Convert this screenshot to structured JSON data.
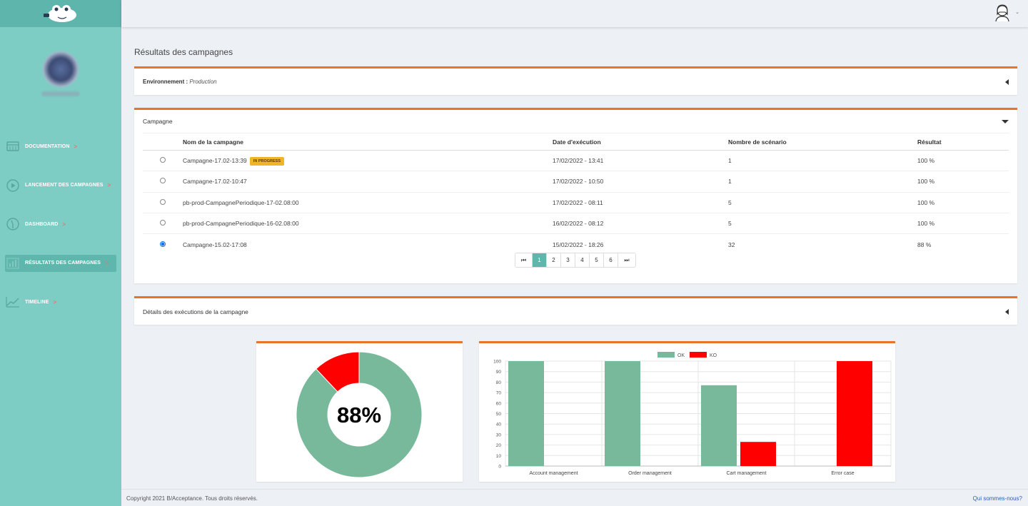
{
  "page": {
    "title": "Résultats des campagnes"
  },
  "sidebar": {
    "items": [
      {
        "label": "DOCUMENTATION",
        "arrow": ">"
      },
      {
        "label": "LANCEMENT DES CAMPAGNES",
        "arrow": ">"
      },
      {
        "label": "DASHBOARD",
        "arrow": ">"
      },
      {
        "label": "RÉSULTATS DES CAMPAGNES",
        "arrow": ">"
      },
      {
        "label": "TIMELINE",
        "arrow": ">"
      }
    ]
  },
  "environment": {
    "label": "Environnement :",
    "value": "Production"
  },
  "campaign": {
    "title": "Campagne",
    "columns": [
      "Nom de la campagne",
      "Date d'exécution",
      "Nombre de scénario",
      "Résultat"
    ],
    "rows": [
      {
        "name": "Campagne-17.02-13:39",
        "badge": "IN PROGRESS",
        "date": "17/02/2022 - 13:41",
        "count": "1",
        "result": "100 %",
        "selected": false
      },
      {
        "name": "Campagne-17.02-10:47",
        "badge": "",
        "date": "17/02/2022 - 10:50",
        "count": "1",
        "result": "100 %",
        "selected": false
      },
      {
        "name": "pb-prod-CampagnePeriodique-17-02.08:00",
        "badge": "",
        "date": "17/02/2022 - 08:11",
        "count": "5",
        "result": "100 %",
        "selected": false
      },
      {
        "name": "pb-prod-CampagnePeriodique-16-02.08:00",
        "badge": "",
        "date": "16/02/2022 - 08:12",
        "count": "5",
        "result": "100 %",
        "selected": false
      },
      {
        "name": "Campagne-15.02-17:08",
        "badge": "",
        "date": "15/02/2022 - 18:26",
        "count": "32",
        "result": "88 %",
        "selected": true
      }
    ],
    "pagination": {
      "first": "⏮",
      "pages": [
        "1",
        "2",
        "3",
        "4",
        "5",
        "6"
      ],
      "active": "1",
      "last": "⏭"
    }
  },
  "details": {
    "title": "Détails des exécutions de la campagne"
  },
  "footer": {
    "copyright": "Copyright 2021 B/Acceptance. Tous droits réservés.",
    "link": "Qui sommes-nous?"
  },
  "colors": {
    "ok": "#77b99a",
    "ko": "#ff0000",
    "accent": "#e8742a",
    "sidebar": "#7ecdc4"
  },
  "chart_data": [
    {
      "type": "pie",
      "variant": "doughnut",
      "center_label": "88%",
      "slices": [
        {
          "label": "OK",
          "value": 88
        },
        {
          "label": "KO",
          "value": 12
        }
      ]
    },
    {
      "type": "bar",
      "categories": [
        "Account management",
        "Order management",
        "Cart management",
        "Error case"
      ],
      "series": [
        {
          "name": "OK",
          "values": [
            100,
            100,
            77,
            0
          ]
        },
        {
          "name": "KO",
          "values": [
            0,
            0,
            23,
            100
          ]
        }
      ],
      "ylim": [
        0,
        100
      ],
      "yticks": [
        0,
        10,
        20,
        30,
        40,
        50,
        60,
        70,
        80,
        90,
        100
      ],
      "grid": true,
      "legend": "top-center"
    }
  ]
}
